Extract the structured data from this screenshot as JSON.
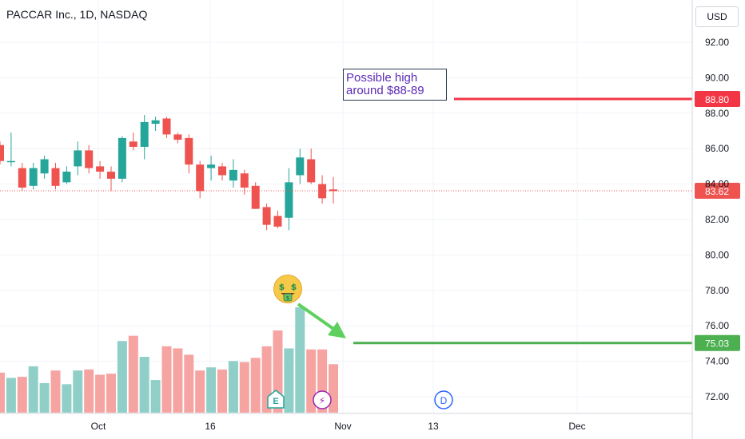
{
  "header": {
    "title": "PACCAR Inc., 1D, NASDAQ",
    "currency": "USD"
  },
  "annotation": {
    "line1": "Possible high",
    "line2": "around $88-89"
  },
  "event_markers": [
    "E",
    "⚡",
    "D"
  ],
  "colors": {
    "up": "#26a69a",
    "down": "#ef5350",
    "volume_up": "#8fcfc8",
    "volume_down": "#f5a4a2",
    "resistance": "#f23645",
    "support": "#4caf50",
    "note_text": "#5b2bb5",
    "dividend": "#2962ff",
    "split": "#9c27b0"
  },
  "chart_data": {
    "type": "candlestick",
    "price_axis": {
      "ticks": [
        "92.00",
        "90.00",
        "88.00",
        "86.00",
        "84.00",
        "82.00",
        "80.00",
        "78.00",
        "76.00",
        "74.00",
        "72.00"
      ],
      "ylim": [
        71,
        93.5
      ]
    },
    "time_axis": {
      "ticks": [
        "Oct",
        "16",
        "Nov",
        "13",
        "Dec"
      ]
    },
    "current_price": "83.62",
    "levels": [
      {
        "label": "88.80",
        "value": 88.8,
        "kind": "resistance"
      },
      {
        "label": "75.03",
        "value": 75.03,
        "kind": "support"
      }
    ],
    "candles": [
      {
        "o": 86.2,
        "h": 86.4,
        "l": 85.1,
        "c": 85.3,
        "v": 0.38
      },
      {
        "o": 85.3,
        "h": 86.9,
        "l": 85.0,
        "c": 85.3,
        "v": 0.33
      },
      {
        "o": 84.9,
        "h": 85.2,
        "l": 83.6,
        "c": 83.8,
        "v": 0.34
      },
      {
        "o": 83.9,
        "h": 85.2,
        "l": 83.7,
        "c": 84.9,
        "v": 0.44
      },
      {
        "o": 84.6,
        "h": 85.6,
        "l": 84.3,
        "c": 85.4,
        "v": 0.28
      },
      {
        "o": 84.9,
        "h": 85.2,
        "l": 83.7,
        "c": 83.9,
        "v": 0.4
      },
      {
        "o": 84.1,
        "h": 85.0,
        "l": 84.0,
        "c": 84.7,
        "v": 0.27
      },
      {
        "o": 85.0,
        "h": 86.4,
        "l": 84.5,
        "c": 85.9,
        "v": 0.4
      },
      {
        "o": 85.9,
        "h": 86.2,
        "l": 84.6,
        "c": 84.9,
        "v": 0.41
      },
      {
        "o": 85.0,
        "h": 85.3,
        "l": 84.3,
        "c": 84.7,
        "v": 0.36
      },
      {
        "o": 84.7,
        "h": 85.0,
        "l": 83.6,
        "c": 84.3,
        "v": 0.37
      },
      {
        "o": 84.3,
        "h": 86.7,
        "l": 84.1,
        "c": 86.6,
        "v": 0.68
      },
      {
        "o": 86.4,
        "h": 86.9,
        "l": 85.9,
        "c": 86.1,
        "v": 0.73
      },
      {
        "o": 86.1,
        "h": 87.9,
        "l": 85.4,
        "c": 87.5,
        "v": 0.53
      },
      {
        "o": 87.4,
        "h": 87.8,
        "l": 87.0,
        "c": 87.6,
        "v": 0.31
      },
      {
        "o": 87.7,
        "h": 87.8,
        "l": 86.6,
        "c": 86.8,
        "v": 0.63
      },
      {
        "o": 86.8,
        "h": 86.9,
        "l": 86.3,
        "c": 86.5,
        "v": 0.61
      },
      {
        "o": 86.6,
        "h": 86.8,
        "l": 84.6,
        "c": 85.1,
        "v": 0.55
      },
      {
        "o": 85.1,
        "h": 85.3,
        "l": 83.2,
        "c": 83.6,
        "v": 0.4
      },
      {
        "o": 84.9,
        "h": 85.6,
        "l": 84.2,
        "c": 85.1,
        "v": 0.43
      },
      {
        "o": 85.0,
        "h": 85.2,
        "l": 84.2,
        "c": 84.5,
        "v": 0.41
      },
      {
        "o": 84.2,
        "h": 85.4,
        "l": 83.8,
        "c": 84.8,
        "v": 0.49
      },
      {
        "o": 84.6,
        "h": 84.8,
        "l": 83.4,
        "c": 83.8,
        "v": 0.48
      },
      {
        "o": 83.9,
        "h": 84.1,
        "l": 82.6,
        "c": 82.6,
        "v": 0.52
      },
      {
        "o": 82.7,
        "h": 82.9,
        "l": 81.4,
        "c": 81.7,
        "v": 0.63
      },
      {
        "o": 82.2,
        "h": 82.5,
        "l": 81.5,
        "c": 81.6,
        "v": 0.78
      },
      {
        "o": 82.1,
        "h": 84.9,
        "l": 81.4,
        "c": 84.1,
        "v": 0.61
      },
      {
        "o": 84.5,
        "h": 86.0,
        "l": 84.0,
        "c": 85.5,
        "v": 1.0
      },
      {
        "o": 85.4,
        "h": 86.0,
        "l": 84.0,
        "c": 84.1,
        "v": 0.6
      },
      {
        "o": 84.0,
        "h": 84.5,
        "l": 82.9,
        "c": 83.2,
        "v": 0.6
      },
      {
        "o": 83.7,
        "h": 84.4,
        "l": 82.9,
        "c": 83.6,
        "v": 0.46
      }
    ]
  }
}
